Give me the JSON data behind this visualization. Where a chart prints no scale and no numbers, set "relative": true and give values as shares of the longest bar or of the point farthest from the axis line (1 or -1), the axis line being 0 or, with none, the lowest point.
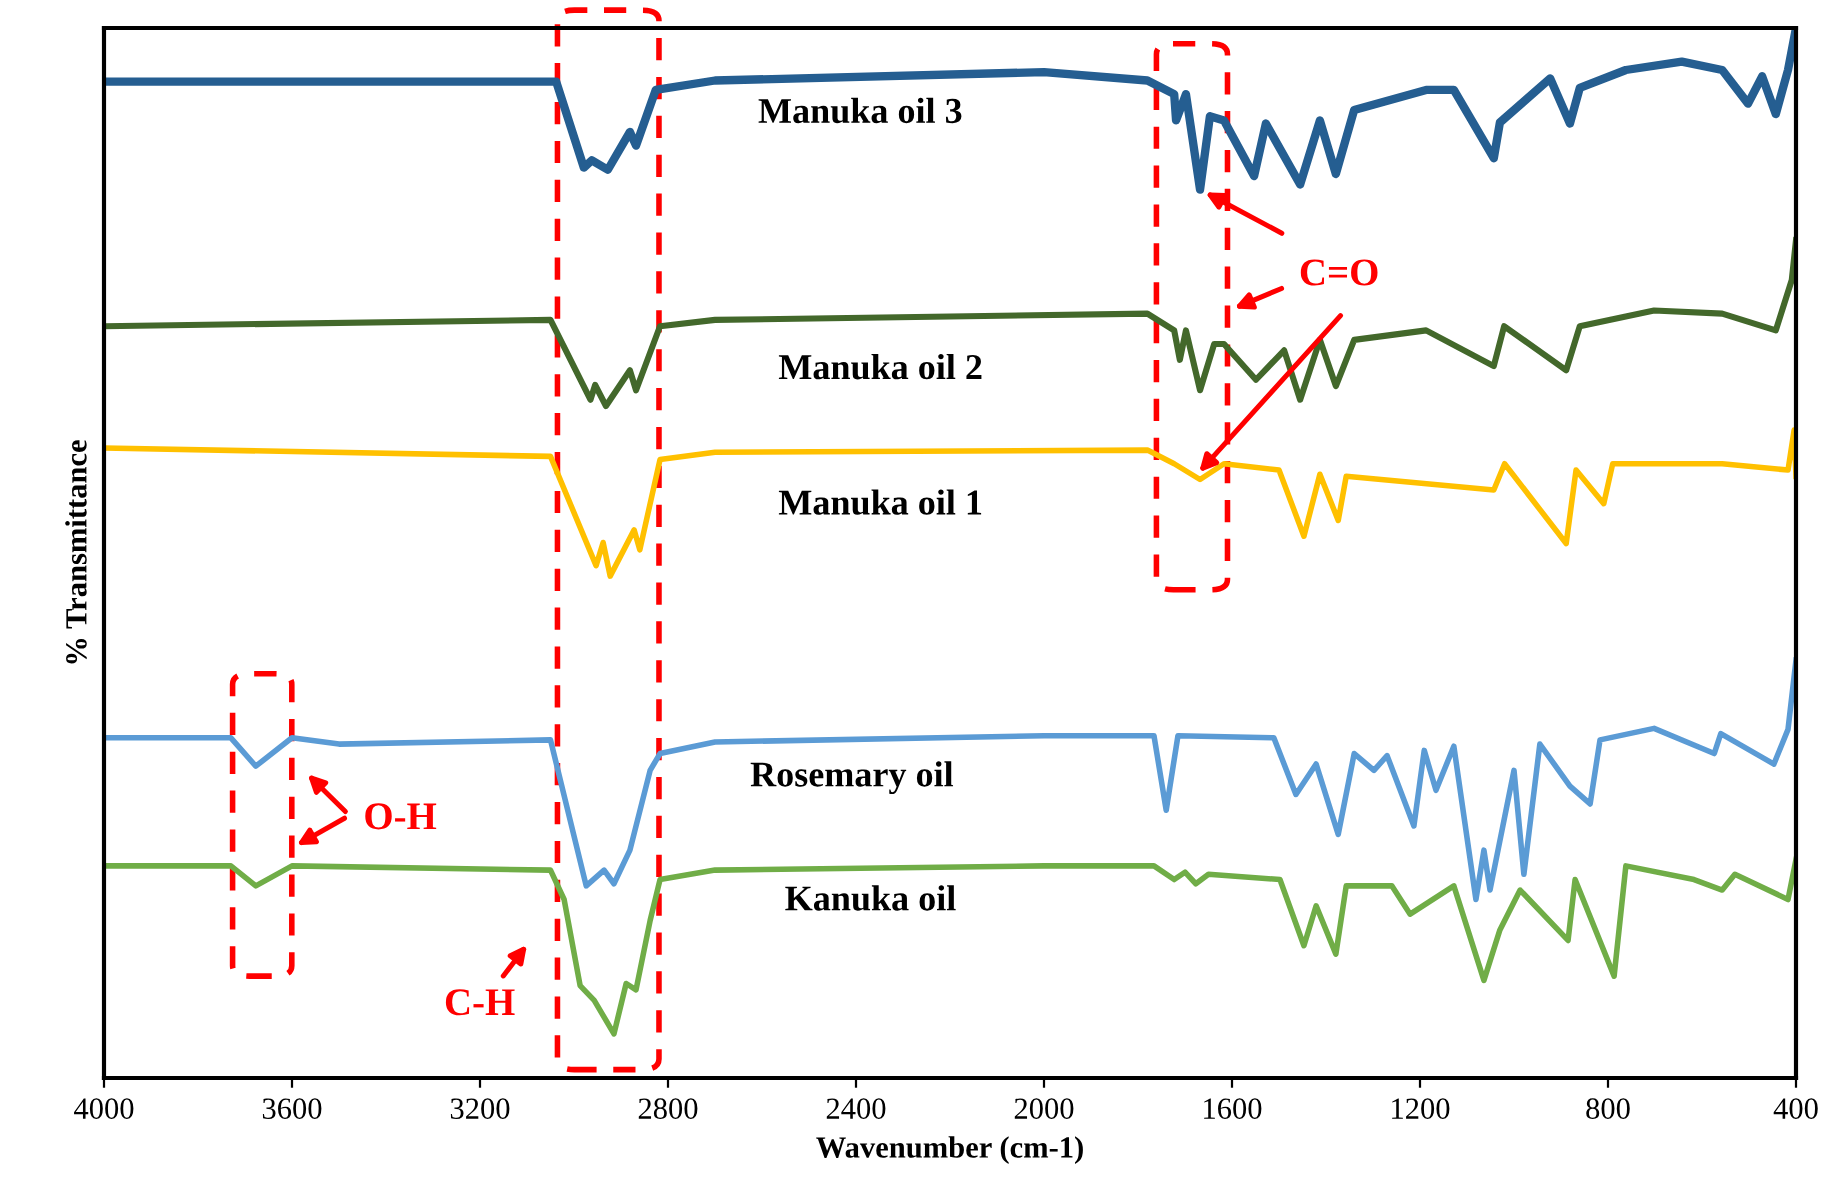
{
  "chart_data": {
    "type": "line",
    "relative": true,
    "xlabel": "Wavenumber (cm-1)",
    "ylabel": "% Transmittance",
    "xlim": [
      4000,
      400
    ],
    "xticks": [
      4000,
      3600,
      3200,
      2800,
      2400,
      2000,
      1600,
      1200,
      800,
      400
    ],
    "grid": false,
    "legend": false,
    "marker": "none",
    "line_style": "solid",
    "annotations": [
      "C=O",
      "O-H",
      "C-H"
    ],
    "series": [
      {
        "name": "Manuka oil 3",
        "color": "#255e91",
        "x": [
          4000,
          3200,
          3038,
          2979,
          2962,
          2928,
          2881,
          2868,
          2826,
          2700,
          2000,
          1780,
          1723,
          1719,
          1698,
          1668,
          1647,
          1617,
          1553,
          1528,
          1455,
          1413,
          1379,
          1340,
          1187,
          1128,
          1043,
          1030,
          923,
          881,
          860,
          762,
          643,
          557,
          502,
          472,
          443,
          417,
          400
        ],
        "values": [
          0.949,
          0.949,
          0.949,
          0.867,
          0.874,
          0.865,
          0.901,
          0.888,
          0.941,
          0.95,
          0.958,
          0.95,
          0.937,
          0.912,
          0.937,
          0.846,
          0.916,
          0.912,
          0.859,
          0.909,
          0.851,
          0.912,
          0.861,
          0.922,
          0.941,
          0.941,
          0.876,
          0.91,
          0.952,
          0.909,
          0.943,
          0.96,
          0.968,
          0.96,
          0.928,
          0.954,
          0.918,
          0.96,
          1.0
        ]
      },
      {
        "name": "Manuka oil 2",
        "color": "#43682b",
        "x": [
          4000,
          3050,
          2965,
          2955,
          2932,
          2881,
          2868,
          2817,
          2700,
          1780,
          1723,
          1711,
          1698,
          1668,
          1638,
          1617,
          1549,
          1489,
          1455,
          1413,
          1379,
          1340,
          1187,
          1043,
          1021,
          889,
          860,
          702,
          557,
          443,
          409,
          400
        ],
        "values": [
          0.716,
          0.722,
          0.646,
          0.66,
          0.64,
          0.674,
          0.655,
          0.716,
          0.722,
          0.728,
          0.712,
          0.684,
          0.712,
          0.655,
          0.699,
          0.699,
          0.665,
          0.693,
          0.646,
          0.703,
          0.659,
          0.703,
          0.712,
          0.678,
          0.716,
          0.674,
          0.716,
          0.731,
          0.728,
          0.712,
          0.76,
          0.798
        ]
      },
      {
        "name": "Manuka oil 1",
        "color": "#ffc000",
        "x": [
          4000,
          3050,
          2953,
          2938,
          2923,
          2872,
          2860,
          2817,
          2700,
          1780,
          1723,
          1668,
          1617,
          1500,
          1447,
          1413,
          1374,
          1357,
          1043,
          1020,
          889,
          868,
          809,
          790,
          557,
          417,
          404,
          400
        ],
        "values": [
          0.6,
          0.592,
          0.488,
          0.51,
          0.478,
          0.522,
          0.503,
          0.589,
          0.596,
          0.598,
          0.585,
          0.57,
          0.585,
          0.579,
          0.516,
          0.575,
          0.531,
          0.573,
          0.56,
          0.585,
          0.509,
          0.579,
          0.547,
          0.585,
          0.585,
          0.579,
          0.617,
          0.573
        ]
      },
      {
        "name": "Rosemary oil",
        "color": "#5b9bd5",
        "x": [
          4000,
          3730,
          3677,
          3600,
          3500,
          3050,
          2974,
          2936,
          2915,
          2881,
          2838,
          2817,
          2700,
          2000,
          1766,
          1740,
          1715,
          1511,
          1464,
          1421,
          1374,
          1340,
          1298,
          1270,
          1213,
          1191,
          1166,
          1128,
          1081,
          1064,
          1051,
          1000,
          979,
          945,
          881,
          838,
          817,
          702,
          574,
          560,
          447,
          417,
          400
        ],
        "values": [
          0.324,
          0.324,
          0.297,
          0.324,
          0.318,
          0.322,
          0.183,
          0.198,
          0.185,
          0.217,
          0.293,
          0.309,
          0.32,
          0.326,
          0.326,
          0.255,
          0.326,
          0.324,
          0.27,
          0.299,
          0.232,
          0.309,
          0.293,
          0.307,
          0.24,
          0.312,
          0.274,
          0.316,
          0.17,
          0.217,
          0.179,
          0.293,
          0.194,
          0.318,
          0.278,
          0.261,
          0.322,
          0.333,
          0.309,
          0.328,
          0.299,
          0.332,
          0.398
        ]
      },
      {
        "name": "Kanuka oil",
        "color": "#70ad47",
        "x": [
          4000,
          3730,
          3677,
          3600,
          3050,
          3021,
          2987,
          2957,
          2915,
          2889,
          2868,
          2838,
          2817,
          2700,
          2000,
          1766,
          1723,
          1700,
          1677,
          1650,
          1498,
          1447,
          1421,
          1379,
          1357,
          1260,
          1221,
          1128,
          1064,
          1030,
          987,
          885,
          870,
          787,
          762,
          617,
          557,
          530,
          417,
          400
        ],
        "values": [
          0.202,
          0.202,
          0.183,
          0.202,
          0.198,
          0.17,
          0.088,
          0.074,
          0.042,
          0.09,
          0.084,
          0.15,
          0.189,
          0.198,
          0.202,
          0.202,
          0.189,
          0.196,
          0.185,
          0.194,
          0.189,
          0.126,
          0.164,
          0.118,
          0.183,
          0.183,
          0.156,
          0.183,
          0.093,
          0.141,
          0.179,
          0.131,
          0.189,
          0.097,
          0.202,
          0.189,
          0.179,
          0.194,
          0.17,
          0.208
        ]
      }
    ]
  }
}
